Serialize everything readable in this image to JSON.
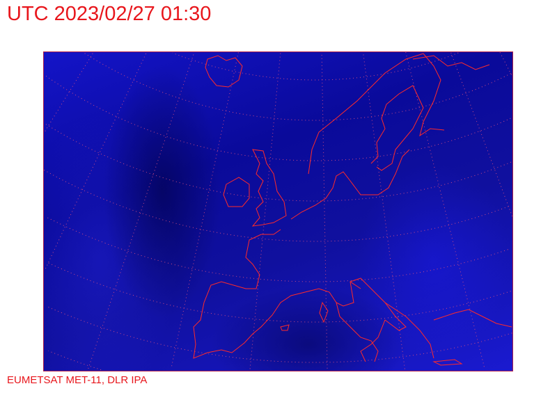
{
  "header": {
    "title": "UTC 2023/02/27 01:30"
  },
  "footer": {
    "credit": "EUMETSAT MET-11, DLR IPA"
  },
  "map": {
    "type": "satellite-infrared",
    "region": "Europe",
    "colors": {
      "background": "#1010a8",
      "coastline": "#ff2a2a",
      "grid": "#e05080",
      "text": "#e8161c"
    },
    "grid": "dotted lat/lon graticule"
  }
}
